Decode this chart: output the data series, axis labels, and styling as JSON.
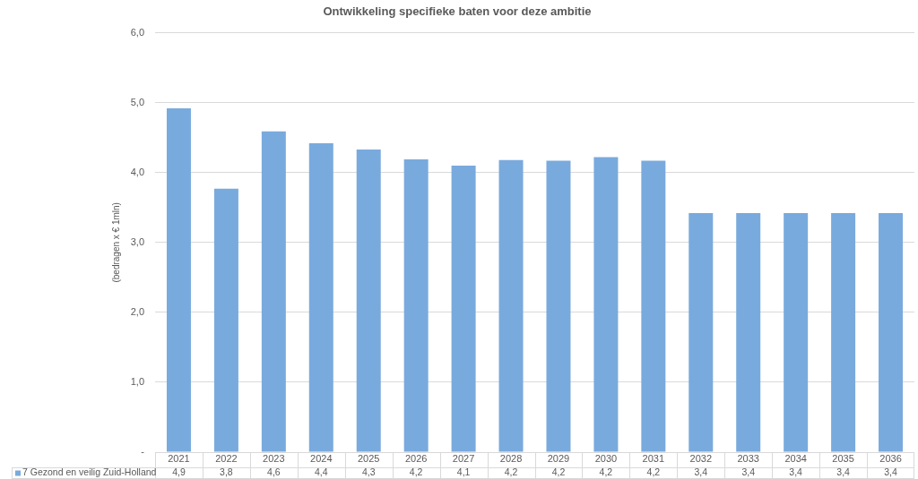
{
  "chart_data": {
    "type": "bar",
    "title": "Ontwikkeling specifieke baten voor deze ambitie",
    "ylabel": "(bedragen x € 1mln)",
    "categories": [
      "2021",
      "2022",
      "2023",
      "2024",
      "2025",
      "2026",
      "2027",
      "2028",
      "2029",
      "2030",
      "2031",
      "2032",
      "2033",
      "2034",
      "2035",
      "2036"
    ],
    "series": [
      {
        "name": "7 Gezond en veilig Zuid-Holland",
        "color": "#79aadd",
        "values": [
          4.92,
          3.77,
          4.59,
          4.42,
          4.33,
          4.19,
          4.1,
          4.18,
          4.17,
          4.22,
          4.17,
          3.42,
          3.42,
          3.42,
          3.42,
          3.42
        ],
        "value_labels": [
          "4,9",
          "3,8",
          "4,6",
          "4,4",
          "4,3",
          "4,2",
          "4,1",
          "4,2",
          "4,2",
          "4,2",
          "4,2",
          "3,4",
          "3,4",
          "3,4",
          "3,4",
          "3,4"
        ]
      }
    ],
    "ylim": [
      0,
      6
    ],
    "yticks": [
      {
        "value": 0,
        "label": "-"
      },
      {
        "value": 1,
        "label": "1,0"
      },
      {
        "value": 2,
        "label": "2,0"
      },
      {
        "value": 3,
        "label": "3,0"
      },
      {
        "value": 4,
        "label": "4,0"
      },
      {
        "value": 5,
        "label": "5,0"
      },
      {
        "value": 6,
        "label": "6,0"
      }
    ],
    "grid": "y",
    "legend": "bottom left"
  }
}
